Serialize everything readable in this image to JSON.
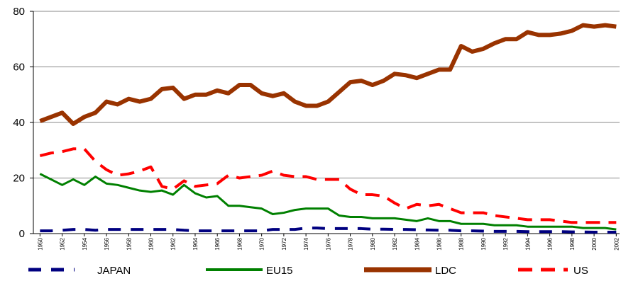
{
  "chart_data": {
    "type": "line",
    "x": [
      1950,
      1951,
      1952,
      1953,
      1954,
      1955,
      1956,
      1957,
      1958,
      1959,
      1960,
      1961,
      1962,
      1963,
      1964,
      1965,
      1966,
      1967,
      1968,
      1969,
      1970,
      1971,
      1972,
      1973,
      1974,
      1975,
      1976,
      1977,
      1978,
      1979,
      1980,
      1981,
      1982,
      1983,
      1984,
      1985,
      1986,
      1987,
      1988,
      1989,
      1990,
      1991,
      1992,
      1993,
      1994,
      1995,
      1996,
      1997,
      1998,
      1999,
      2000,
      2001,
      2002
    ],
    "series": [
      {
        "name": "JAPAN",
        "color": "#000080",
        "values": [
          1,
          1,
          1.2,
          1.5,
          1.5,
          1.2,
          1.5,
          1.5,
          1.5,
          1.5,
          1.5,
          1.5,
          1.5,
          1.2,
          1,
          1,
          1,
          1,
          1,
          1,
          1,
          1.5,
          1.5,
          1.5,
          2,
          2,
          1.8,
          1.8,
          1.8,
          1.8,
          1.6,
          1.6,
          1.5,
          1.5,
          1.4,
          1.3,
          1.2,
          1.2,
          1,
          1,
          0.9,
          0.8,
          0.8,
          0.8,
          0.7,
          0.7,
          0.7,
          0.7,
          0.6,
          0.6,
          0.5,
          0.5,
          0.5
        ]
      },
      {
        "name": "EU15",
        "color": "#008000",
        "values": [
          21.5,
          19.5,
          17.5,
          19.5,
          17.5,
          20.5,
          18,
          17.5,
          16.5,
          15.5,
          15,
          15.5,
          14,
          17.5,
          14.5,
          13,
          13.5,
          10,
          10,
          9.5,
          9,
          7,
          7.5,
          8.5,
          9,
          9,
          9,
          6.5,
          6,
          6,
          5.5,
          5.5,
          5.5,
          5,
          4.5,
          5.5,
          4.5,
          4.5,
          3.5,
          3.5,
          3.5,
          3,
          3,
          3,
          2.5,
          2.5,
          2.5,
          2.5,
          2.5,
          2,
          2,
          2,
          1.5
        ]
      },
      {
        "name": "LDC",
        "color": "#993300",
        "values": [
          40.5,
          42,
          43.5,
          39.5,
          42,
          43.5,
          47.5,
          46.5,
          48.5,
          47.5,
          48.5,
          52,
          52.5,
          48.5,
          50,
          50,
          51.5,
          50.5,
          53.5,
          53.5,
          50.5,
          49.5,
          50.5,
          47.5,
          46,
          46,
          47.5,
          51,
          54.5,
          55,
          53.5,
          55,
          57.5,
          57,
          56,
          57.5,
          59,
          59,
          67.5,
          65.5,
          66.5,
          68.5,
          70,
          70,
          72.5,
          71.5,
          71.5,
          72,
          73,
          75,
          74.5,
          75,
          74.5
        ]
      },
      {
        "name": "US",
        "color": "#ff0000",
        "values": [
          28,
          29,
          29.5,
          30.5,
          30.5,
          26,
          23,
          21,
          21.5,
          22.5,
          24,
          17,
          16,
          19,
          17,
          17.5,
          18,
          21,
          20,
          20.5,
          21,
          22.5,
          21,
          20.5,
          20.5,
          19.5,
          19.5,
          19.5,
          16,
          14,
          14,
          13.5,
          11,
          9,
          10.5,
          10,
          10.5,
          9,
          7.5,
          7.5,
          7.5,
          6.5,
          6,
          5.5,
          5,
          5,
          5,
          4.5,
          4,
          4,
          4,
          4,
          4
        ]
      }
    ],
    "xlim": [
      1949.4,
      2002.3
    ],
    "xticks": [
      1950,
      1952,
      1954,
      1956,
      1958,
      1960,
      1962,
      1964,
      1966,
      1968,
      1970,
      1972,
      1974,
      1976,
      1978,
      1980,
      1982,
      1984,
      1986,
      1988,
      1990,
      1992,
      1994,
      1996,
      1998,
      2000,
      2002
    ],
    "ylim": [
      0,
      80
    ],
    "yticks": [
      0,
      20,
      40,
      60,
      80
    ],
    "grid": true,
    "legend": "bottom"
  }
}
